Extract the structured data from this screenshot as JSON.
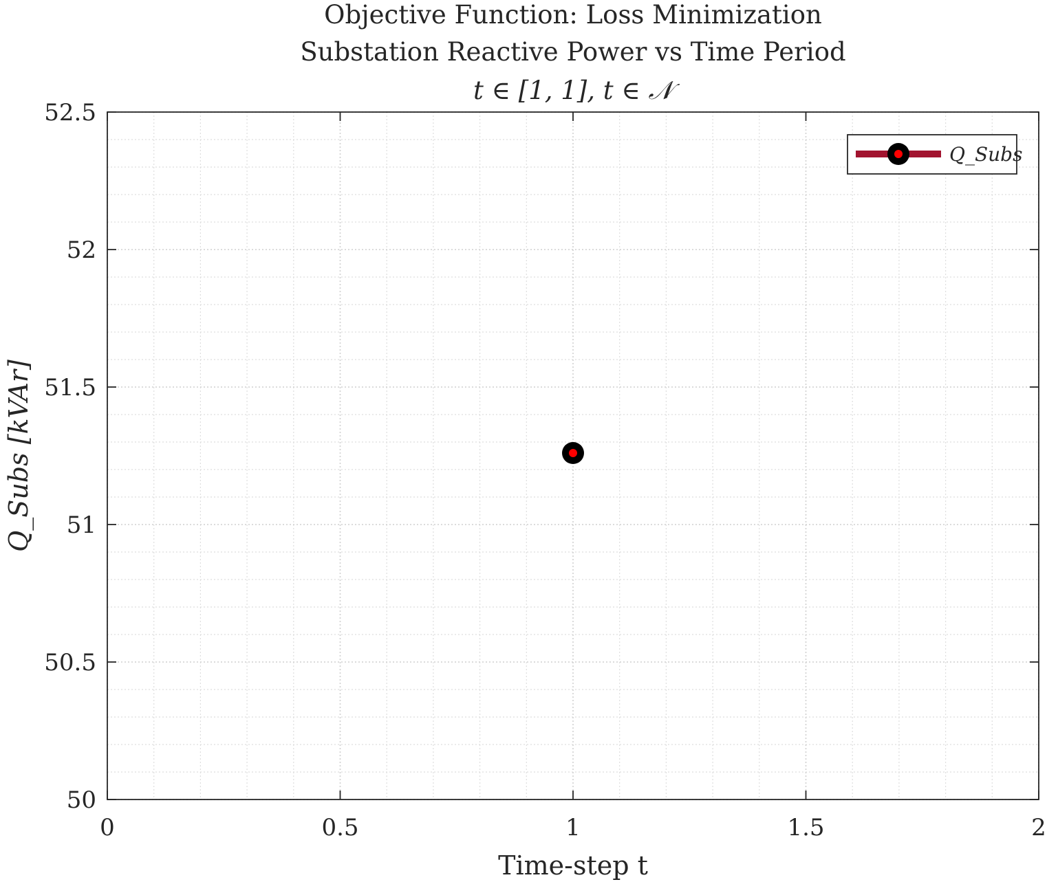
{
  "chart_data": {
    "type": "line",
    "title_lines": [
      "Objective Function: Loss Minimization",
      "Substation Reactive Power vs Time Period",
      "t ∈ [1, 1], t ∈ 𝒩"
    ],
    "xlabel": "Time-step t",
    "ylabel": "Q_Subs [kVAr]",
    "xlim": [
      0,
      2
    ],
    "ylim": [
      50,
      52.5
    ],
    "x_ticks": [
      0,
      0.5,
      1,
      1.5,
      2
    ],
    "x_tick_labels": [
      "0",
      "0.5",
      "1",
      "1.5",
      "2"
    ],
    "y_ticks": [
      50,
      50.5,
      51,
      51.5,
      52,
      52.5
    ],
    "y_tick_labels": [
      "50",
      "50.5",
      "51",
      "51.5",
      "52",
      "52.5"
    ],
    "grid": true,
    "minor_grid": true,
    "legend_position": "top-right",
    "series": [
      {
        "name": "Q_Subs",
        "x": [
          1
        ],
        "y": [
          51.26
        ],
        "line_color": "#a2142f",
        "marker_edge_color": "#000000",
        "marker_face_color": "#ff0000"
      }
    ]
  }
}
